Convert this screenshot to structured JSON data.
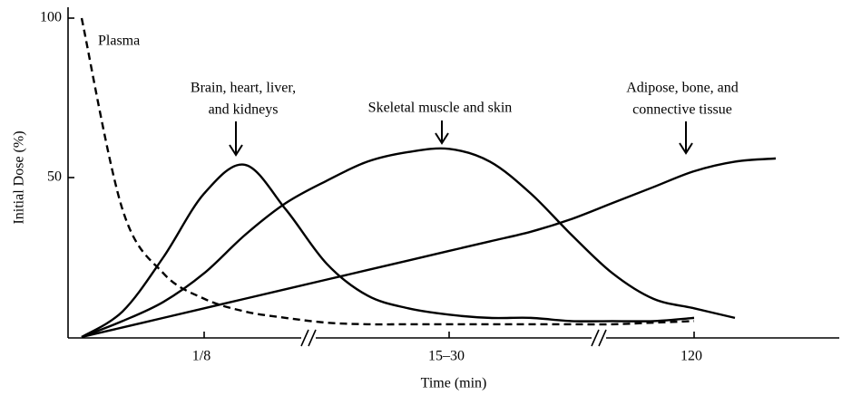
{
  "chart_data": {
    "type": "line",
    "y_label": "Initial Dose (%)",
    "x_label": "Time (min)",
    "categories": [
      null,
      null,
      null,
      "1/8",
      null,
      null,
      null,
      null,
      null,
      "15–30",
      null,
      null,
      null,
      null,
      null,
      "120",
      null,
      null
    ],
    "ylim": [
      0,
      100
    ],
    "yticks": [
      50,
      100
    ],
    "series": [
      {
        "name": [
          "Plasma"
        ],
        "color": "#000000",
        "dash": true,
        "values": [
          100,
          40,
          20,
          12,
          8,
          6,
          4.5,
          4,
          4,
          4,
          4,
          4,
          4,
          4,
          4.5,
          5,
          null,
          null
        ]
      },
      {
        "name": [
          "Brain, heart, liver,",
          "and kidneys"
        ],
        "color": "#000000",
        "dash": false,
        "values": [
          0,
          8,
          25,
          45,
          54,
          40,
          23,
          13,
          9,
          7,
          6,
          6,
          5,
          5,
          5,
          6,
          null,
          null
        ]
      },
      {
        "name": [
          "Skeletal muscle and skin"
        ],
        "color": "#000000",
        "dash": false,
        "values": [
          0,
          5,
          11,
          20,
          32,
          42,
          49,
          55,
          58,
          59,
          55,
          45,
          32,
          20,
          12,
          9,
          6,
          null
        ]
      },
      {
        "name": [
          "Adipose, bone, and",
          "connective tissue"
        ],
        "color": "#000000",
        "dash": false,
        "values": [
          0,
          3,
          6,
          9,
          12,
          15,
          18,
          21,
          24,
          27,
          30,
          33,
          37,
          42,
          47,
          52,
          55,
          56
        ]
      }
    ]
  }
}
